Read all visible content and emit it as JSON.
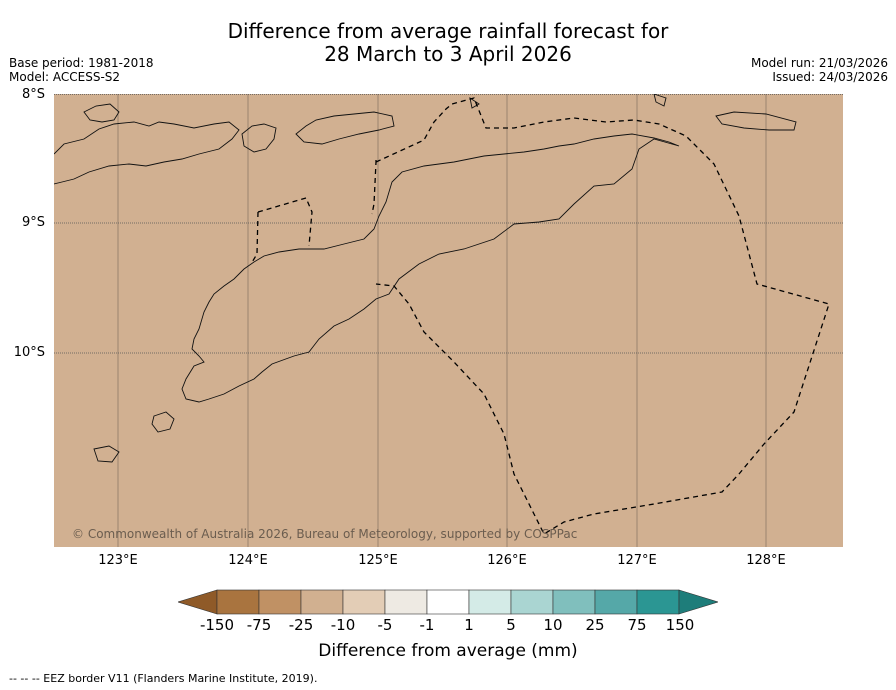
{
  "title_line1": "Difference from average rainfall forecast for",
  "title_line2": "28 March to 3 April 2026",
  "meta": {
    "base_period": "Base period: 1981-2018",
    "model": "Model: ACCESS-S2",
    "model_run": "Model run: 21/03/2026",
    "issued": "Issued: 24/03/2026"
  },
  "latitudes": [
    "8°S",
    "9°S",
    "10°S"
  ],
  "longitudes": [
    "123°E",
    "124°E",
    "125°E",
    "126°E",
    "127°E",
    "128°E"
  ],
  "copyright": "© Commonwealth of Australia 2026, Bureau of Meteorology, supported by COSPPac",
  "colorbar": {
    "labels": [
      "-150",
      "-75",
      "-25",
      "-10",
      "-5",
      "-1",
      "1",
      "5",
      "10",
      "25",
      "75",
      "150"
    ],
    "colors": [
      "#8f5a28",
      "#a9743f",
      "#c09164",
      "#d1b090",
      "#e3cdb6",
      "#eeeae3",
      "#ffffff",
      "#d4ebe7",
      "#aad5d2",
      "#80bfbd",
      "#55a8a8",
      "#2b9693",
      "#1e7d7a"
    ],
    "title": "Difference from average (mm)"
  },
  "map_fill_color": "#d1b091",
  "footer": "--  --  -- EEZ border V11 (Flanders Marine Institute, 2019)."
}
